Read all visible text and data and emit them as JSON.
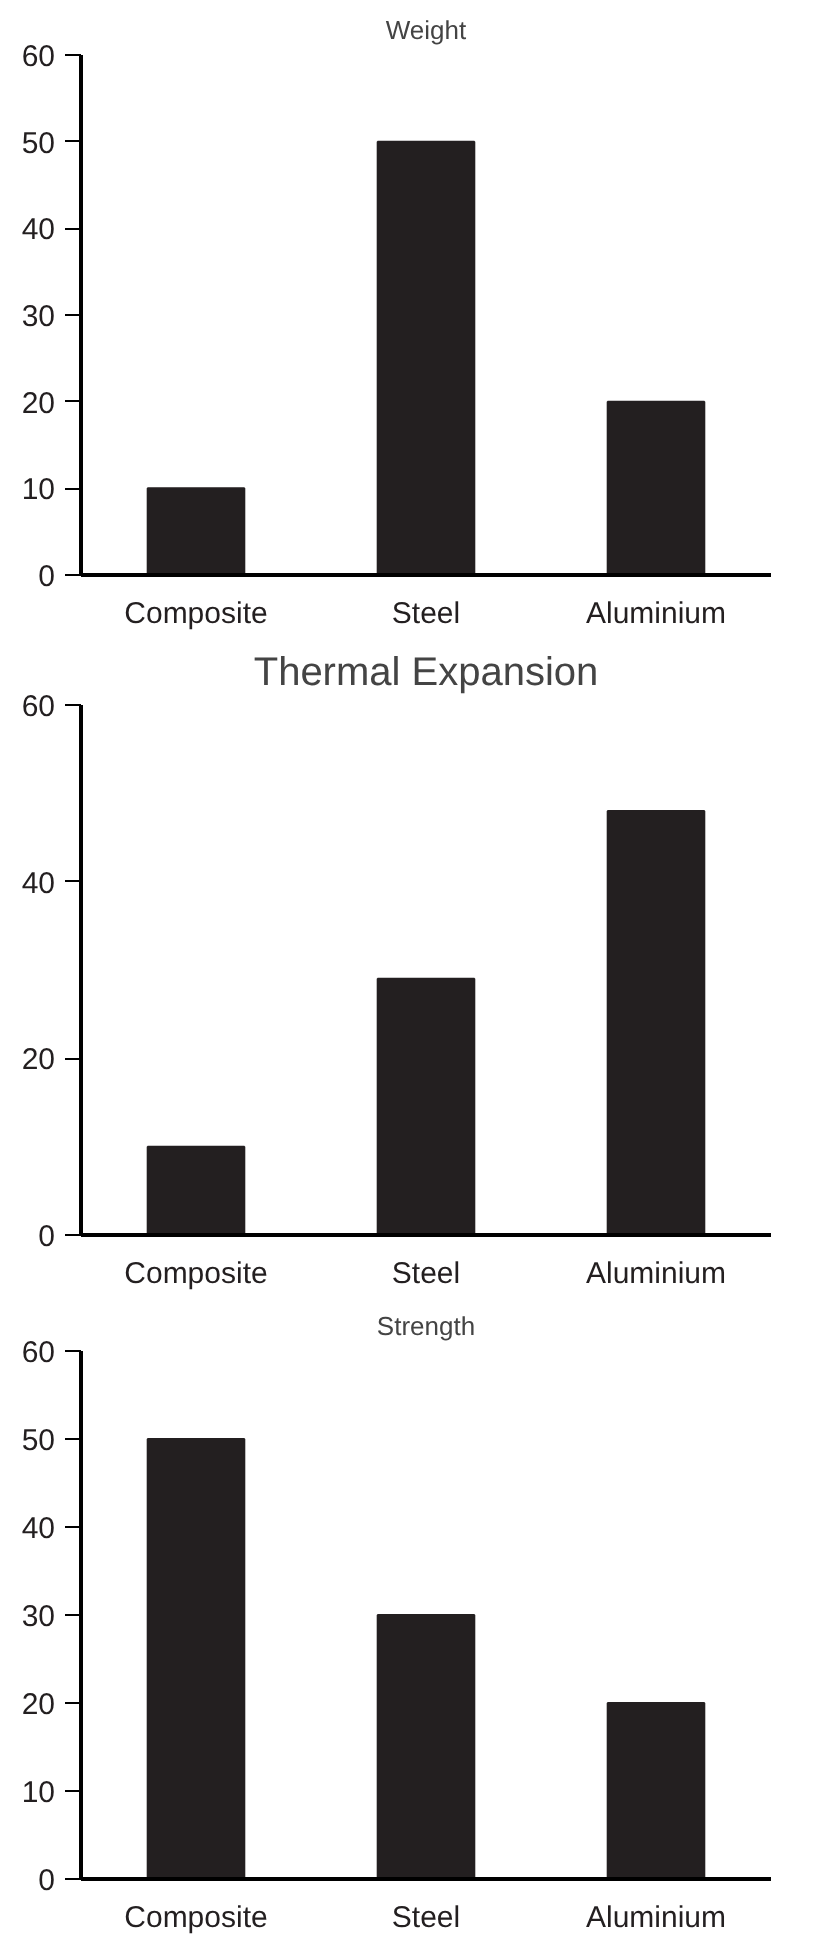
{
  "chart_data": [
    {
      "type": "bar",
      "title": "Weight",
      "categories": [
        "Composite",
        "Steel",
        "Aluminium"
      ],
      "values": [
        10,
        50,
        20
      ],
      "color": "#231f20",
      "ylim": [
        0,
        60
      ],
      "yticks": [
        0,
        10,
        20,
        30,
        40,
        50,
        60
      ]
    },
    {
      "type": "bar",
      "title": "Thermal Expansion",
      "categories": [
        "Composite",
        "Steel",
        "Aluminium"
      ],
      "values": [
        10,
        29,
        48
      ],
      "color": "#231f20",
      "ylim": [
        0,
        60
      ],
      "yticks": [
        0,
        20,
        40,
        60
      ]
    },
    {
      "type": "bar",
      "title": "Strength",
      "categories": [
        "Composite",
        "Steel",
        "Aluminium"
      ],
      "values": [
        50,
        30,
        20
      ],
      "color": "#231f20",
      "ylim": [
        0,
        60
      ],
      "yticks": [
        0,
        10,
        20,
        30,
        40,
        50,
        60
      ]
    }
  ]
}
